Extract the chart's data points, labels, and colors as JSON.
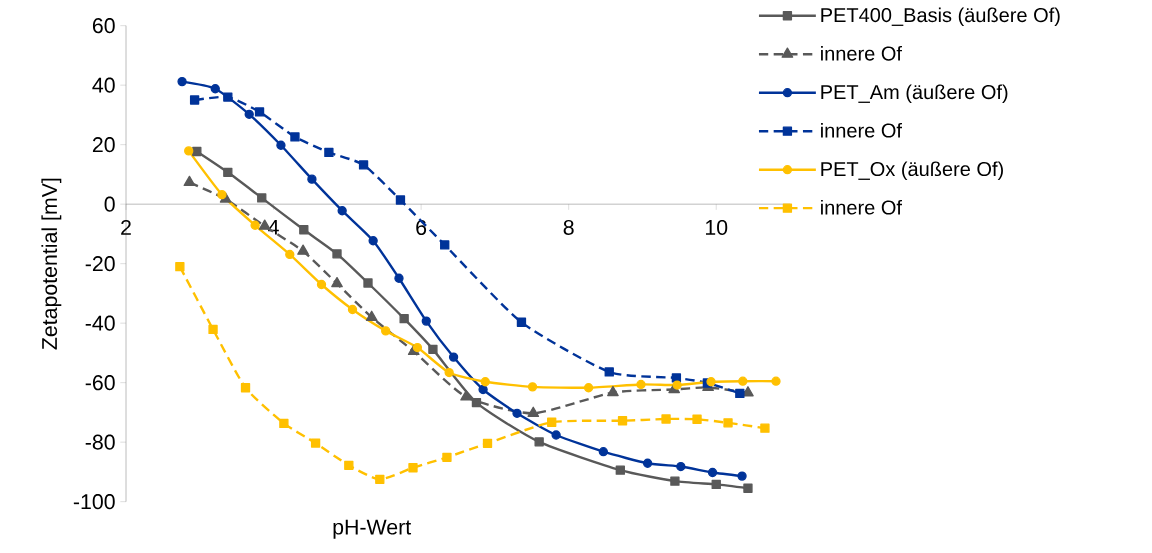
{
  "chart_data": {
    "type": "line",
    "xlabel": "pH-Wert",
    "ylabel": "Zetapotential [mV]",
    "xlim": [
      2,
      11
    ],
    "xticks": [
      2,
      4,
      6,
      8,
      10
    ],
    "ylim": [
      -100,
      60
    ],
    "yticks": [
      -100,
      -80,
      -60,
      -40,
      -20,
      0,
      20,
      40,
      60
    ],
    "grid": false,
    "legend": "top right",
    "series": [
      {
        "name": "PET400_Basis (äußere Of)",
        "color": "#595959",
        "marker": "square",
        "line_style": "solid",
        "x": [
          2.96,
          3.38,
          3.84,
          4.41,
          4.86,
          5.28,
          5.77,
          6.16,
          6.75,
          7.6,
          8.7,
          9.44,
          10.0,
          10.43
        ],
        "values": [
          17.7,
          10.7,
          2.1,
          -8.6,
          -16.7,
          -26.5,
          -38.5,
          -48.8,
          -66.7,
          -79.9,
          -89.4,
          -93.1,
          -94.2,
          -95.5
        ]
      },
      {
        "name": "innere Of",
        "color": "#595959",
        "marker": "triangle",
        "line_style": "dashed",
        "x": [
          2.86,
          3.35,
          3.88,
          4.4,
          4.86,
          5.33,
          5.9,
          6.61,
          7.52,
          8.6,
          9.43,
          9.89,
          10.43
        ],
        "values": [
          7.3,
          1.7,
          -7.4,
          -15.8,
          -26.7,
          -38.0,
          -49.5,
          -64.8,
          -70.3,
          -63.3,
          -62.3,
          -61.6,
          -63.4
        ]
      },
      {
        "name": "PET_Am  (äußere Of)",
        "color": "#003399",
        "marker": "circle",
        "line_style": "solid",
        "x": [
          2.76,
          3.21,
          3.67,
          4.1,
          4.52,
          4.93,
          5.35,
          5.7,
          6.07,
          6.44,
          6.84,
          7.3,
          7.83,
          8.47,
          9.07,
          9.52,
          9.95,
          10.35
        ],
        "values": [
          41.2,
          38.8,
          30.2,
          19.8,
          8.4,
          -2.2,
          -12.3,
          -24.9,
          -39.3,
          -51.4,
          -62.3,
          -70.3,
          -77.6,
          -83.2,
          -87.1,
          -88.2,
          -90.2,
          -91.4
        ]
      },
      {
        "name": "innere Of",
        "color": "#003399",
        "marker": "square",
        "line_style": "dashed",
        "x": [
          2.93,
          3.38,
          3.81,
          4.29,
          4.75,
          5.22,
          5.72,
          6.32,
          7.36,
          8.55,
          9.46,
          9.88,
          10.32
        ],
        "values": [
          35.0,
          36.0,
          31.0,
          22.6,
          17.4,
          13.2,
          1.4,
          -13.7,
          -39.7,
          -56.4,
          -58.4,
          -60.1,
          -63.6
        ]
      },
      {
        "name": "PET_Ox  (äußere Of)",
        "color": "#ffc000",
        "marker": "circle",
        "line_style": "solid",
        "x": [
          2.85,
          3.3,
          3.75,
          4.22,
          4.65,
          5.07,
          5.52,
          5.95,
          6.38,
          6.87,
          7.51,
          8.27,
          8.98,
          9.47,
          9.93,
          10.36,
          10.81
        ],
        "values": [
          17.9,
          3.2,
          -7.1,
          -16.9,
          -27.0,
          -35.4,
          -42.6,
          -48.2,
          -56.6,
          -59.7,
          -61.4,
          -61.7,
          -60.6,
          -60.8,
          -59.7,
          -59.5,
          -59.5
        ]
      },
      {
        "name": "innere Of",
        "color": "#ffc000",
        "marker": "square",
        "line_style": "dashed",
        "x": [
          2.73,
          3.18,
          3.62,
          4.14,
          4.57,
          5.02,
          5.44,
          5.89,
          6.35,
          6.9,
          7.77,
          8.73,
          9.32,
          9.74,
          10.16,
          10.66
        ],
        "values": [
          -21.0,
          -42.1,
          -61.7,
          -73.7,
          -80.3,
          -87.8,
          -92.5,
          -88.6,
          -85.1,
          -80.4,
          -73.3,
          -72.8,
          -72.2,
          -72.3,
          -73.5,
          -75.3
        ]
      }
    ]
  }
}
